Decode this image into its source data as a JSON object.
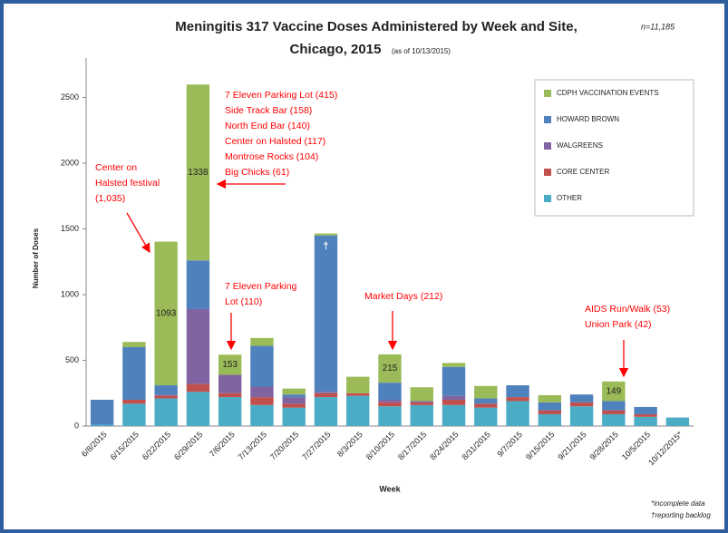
{
  "chart_data": {
    "type": "stacked_bar",
    "title": "Meningitis 317 Vaccine Doses Administered by Week and Site,",
    "title_line2": "Chicago, 2015",
    "subtitle": "(as of 10/13/2015)",
    "n_label": "n=11,185",
    "x_label": "Week",
    "y_label": "Number of Doses",
    "categories": [
      "6/8/2015",
      "6/15/2015",
      "6/22/2015",
      "6/29/2015",
      "7/6/2015",
      "7/13/2015",
      "7/20/2015",
      "7/27/2015",
      "8/3/2015",
      "8/10/2015",
      "8/17/2015",
      "8/24/2015",
      "8/31/2015",
      "9/7/2015",
      "9/15/2015",
      "9/21/2015",
      "9/28/2015",
      "10/5/2015",
      "10/12/2015*"
    ],
    "series": [
      {
        "name": "OTHER",
        "color": "#4bacc6",
        "values": [
          10,
          170,
          210,
          260,
          220,
          160,
          140,
          220,
          230,
          150,
          160,
          160,
          140,
          190,
          90,
          150,
          90,
          70,
          65
        ]
      },
      {
        "name": "CORE CENTER",
        "color": "#c0504d",
        "values": [
          0,
          30,
          20,
          60,
          30,
          60,
          30,
          30,
          20,
          30,
          20,
          40,
          30,
          30,
          30,
          30,
          30,
          20,
          0
        ]
      },
      {
        "name": "WALGREENS",
        "color": "#8064a2",
        "values": [
          0,
          0,
          10,
          570,
          140,
          80,
          50,
          10,
          0,
          20,
          10,
          30,
          0,
          0,
          0,
          0,
          0,
          0,
          0
        ]
      },
      {
        "name": "HOWARD BROWN",
        "color": "#4f81bd",
        "values": [
          190,
          400,
          70,
          370,
          0,
          310,
          20,
          1190,
          0,
          130,
          0,
          220,
          40,
          90,
          60,
          60,
          70,
          55,
          0
        ]
      },
      {
        "name": "CDPH VACCINATION EVENTS",
        "color": "#9bbb59",
        "values": [
          0,
          40,
          1093,
          1338,
          153,
          60,
          45,
          15,
          125,
          215,
          105,
          30,
          95,
          0,
          55,
          0,
          149,
          0,
          0
        ],
        "value_labels": [
          null,
          null,
          "1093",
          "1338",
          "153",
          null,
          null,
          null,
          null,
          "215",
          null,
          null,
          null,
          null,
          null,
          null,
          "149",
          null,
          null
        ]
      }
    ],
    "ylim": [
      0,
      2800
    ],
    "yticks": [
      0,
      500,
      1000,
      1500,
      2000,
      2500
    ],
    "legend": "upper right",
    "annotations": [
      {
        "lines": [
          "Center on",
          "Halsted festival",
          "(1,035)"
        ]
      },
      {
        "lines": [
          "7 Eleven Parking Lot (415)",
          "Side Track Bar (158)",
          "North End Bar (140)",
          "Center on Halsted (117)",
          "Montrose Rocks (104)",
          "Big Chicks (61)"
        ]
      },
      {
        "lines": [
          "7 Eleven Parking",
          "Lot (110)"
        ]
      },
      {
        "lines": [
          "Market Days (212)"
        ]
      },
      {
        "lines": [
          "AIDS Run/Walk (53)",
          "Union Park (42)"
        ]
      }
    ],
    "dagger": "†",
    "footnotes": [
      "*incomplete data",
      "†reporting backlog"
    ]
  }
}
